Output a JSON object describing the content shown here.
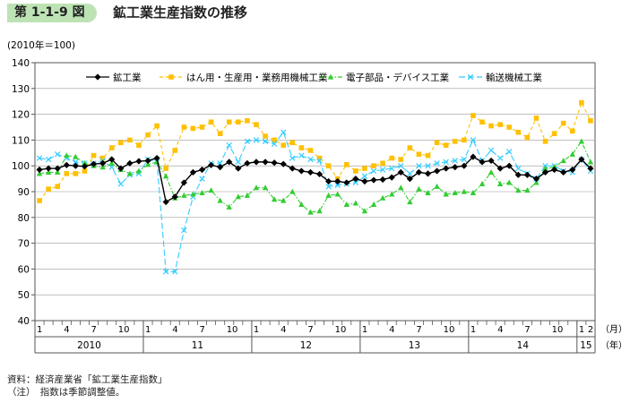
{
  "header": {
    "figure_number": "第 1-1-9 図",
    "title": "鉱工業生産指数の推移"
  },
  "notes": {
    "source": "資料：経済産業省「鉱工業生産指数」",
    "note": "（注）　指数は季節調整値。"
  },
  "colors": {
    "mining": "#000000",
    "parts": "#ffc000",
    "electronics": "#33cc33",
    "transport": "#33ccff",
    "badge": "#bde3b5"
  },
  "chart_data": {
    "type": "line",
    "unit_label": "(2010年＝100)",
    "ylim": [
      40,
      140
    ],
    "yticks": [
      40,
      50,
      60,
      70,
      80,
      90,
      100,
      110,
      120,
      130,
      140
    ],
    "x": [
      "2010-01",
      "2010-02",
      "2010-03",
      "2010-04",
      "2010-05",
      "2010-06",
      "2010-07",
      "2010-08",
      "2010-09",
      "2010-10",
      "2010-11",
      "2010-12",
      "2011-01",
      "2011-02",
      "2011-03",
      "2011-04",
      "2011-05",
      "2011-06",
      "2011-07",
      "2011-08",
      "2011-09",
      "2011-10",
      "2011-11",
      "2011-12",
      "2012-01",
      "2012-02",
      "2012-03",
      "2012-04",
      "2012-05",
      "2012-06",
      "2012-07",
      "2012-08",
      "2012-09",
      "2012-10",
      "2012-11",
      "2012-12",
      "2013-01",
      "2013-02",
      "2013-03",
      "2013-04",
      "2013-05",
      "2013-06",
      "2013-07",
      "2013-08",
      "2013-09",
      "2013-10",
      "2013-11",
      "2013-12",
      "2014-01",
      "2014-02",
      "2014-03",
      "2014-04",
      "2014-05",
      "2014-06",
      "2014-07",
      "2014-08",
      "2014-09",
      "2014-10",
      "2014-11",
      "2014-12",
      "2015-01",
      "2015-02"
    ],
    "month_labels": [
      {
        "month": "1",
        "x": "2010-01"
      },
      {
        "month": "4",
        "x": "2010-04"
      },
      {
        "month": "7",
        "x": "2010-07"
      },
      {
        "month": "10",
        "x": "2010-10"
      },
      {
        "month": "1",
        "x": "2011-01"
      },
      {
        "month": "4",
        "x": "2011-04"
      },
      {
        "month": "7",
        "x": "2011-07"
      },
      {
        "month": "10",
        "x": "2011-10"
      },
      {
        "month": "1",
        "x": "2012-01"
      },
      {
        "month": "4",
        "x": "2012-04"
      },
      {
        "month": "7",
        "x": "2012-07"
      },
      {
        "month": "10",
        "x": "2012-10"
      },
      {
        "month": "1",
        "x": "2013-01"
      },
      {
        "month": "4",
        "x": "2013-04"
      },
      {
        "month": "7",
        "x": "2013-07"
      },
      {
        "month": "10",
        "x": "2013-10"
      },
      {
        "month": "1",
        "x": "2014-01"
      },
      {
        "month": "4",
        "x": "2014-04"
      },
      {
        "month": "7",
        "x": "2014-07"
      },
      {
        "month": "10",
        "x": "2014-10"
      },
      {
        "month": "1",
        "x": "2015-01"
      },
      {
        "month": "2",
        "x": "2015-02"
      }
    ],
    "year_labels": [
      "2010",
      "11",
      "12",
      "13",
      "14",
      "15"
    ],
    "month_unit": "（月）",
    "year_unit": "（年）",
    "legend_position": "top",
    "series": [
      {
        "name": "鉱工業",
        "key": "mining",
        "marker": "diamond",
        "dash": "solid",
        "values": [
          98.5,
          99,
          99,
          100.3,
          100,
          99.8,
          100.7,
          101,
          102.5,
          99,
          101,
          101.8,
          102,
          103,
          86,
          88,
          93.5,
          97.5,
          98.5,
          100.3,
          99.5,
          101.5,
          99,
          101,
          101.5,
          101.5,
          101.2,
          100.7,
          99,
          98,
          97.5,
          96.8,
          94,
          94,
          93.5,
          95,
          94,
          94.5,
          94.7,
          95.5,
          97.5,
          95,
          97.5,
          97,
          98,
          99,
          99.5,
          100,
          103.5,
          101.5,
          102,
          99,
          100,
          96.5,
          96.5,
          95,
          97.5,
          98.5,
          97.5,
          98.5,
          102.5,
          99
        ]
      },
      {
        "name": "はん用・生産用・業務用機械工業",
        "key": "parts",
        "marker": "square",
        "dash": "dash",
        "values": [
          86.5,
          91,
          92,
          97,
          97,
          98,
          104,
          103,
          107,
          109,
          110,
          108,
          112,
          115.5,
          99,
          106,
          115,
          114.5,
          115,
          117,
          112.5,
          117,
          117,
          117.5,
          116,
          111.5,
          110,
          108,
          109,
          107,
          106,
          103,
          100,
          95,
          100.5,
          98,
          99,
          100,
          101,
          103,
          102.5,
          107,
          104.5,
          104,
          109,
          108,
          109.5,
          110,
          119.5,
          117,
          115.5,
          116,
          115,
          113,
          111,
          118.5,
          109.5,
          112.5,
          116.5,
          113.5,
          124.5,
          117.5
        ]
      },
      {
        "name": "電子部品・デバイス工業",
        "key": "electronics",
        "marker": "triangle",
        "dash": "dashdot",
        "values": [
          97,
          97.5,
          97.5,
          104,
          103.5,
          101,
          100,
          99.5,
          101,
          98.5,
          97,
          98,
          100.5,
          101.5,
          96,
          87.5,
          88.5,
          89,
          89.5,
          90.5,
          86.5,
          84,
          88,
          88.5,
          91.5,
          91.5,
          87,
          86.5,
          90,
          85,
          82,
          82.5,
          88.5,
          89,
          85,
          85.5,
          82.5,
          85,
          87.5,
          89,
          91.5,
          86,
          91,
          89.5,
          92,
          89,
          89.5,
          90,
          89.5,
          93,
          97.5,
          93,
          93.5,
          90.5,
          90.5,
          93.5,
          99,
          99.5,
          102,
          104.5,
          109.5,
          101.5
        ]
      },
      {
        "name": "輸送機械工業",
        "key": "transport",
        "marker": "x",
        "dash": "longdash",
        "values": [
          103,
          102.5,
          104.5,
          103,
          101.5,
          101,
          101,
          102,
          99.5,
          93,
          96.5,
          97,
          102.5,
          101.5,
          59,
          59,
          75,
          88,
          95,
          101,
          101,
          108,
          101.5,
          109.5,
          110,
          109.5,
          108.5,
          113,
          103,
          104,
          102.5,
          102,
          92,
          92.5,
          93,
          93.5,
          96,
          98,
          98.5,
          99,
          100,
          97,
          100,
          100,
          101,
          101.5,
          102,
          102.5,
          110,
          102,
          106,
          103,
          105.5,
          99,
          97,
          95,
          100,
          100,
          98,
          97.5,
          102.5,
          98
        ]
      }
    ]
  }
}
